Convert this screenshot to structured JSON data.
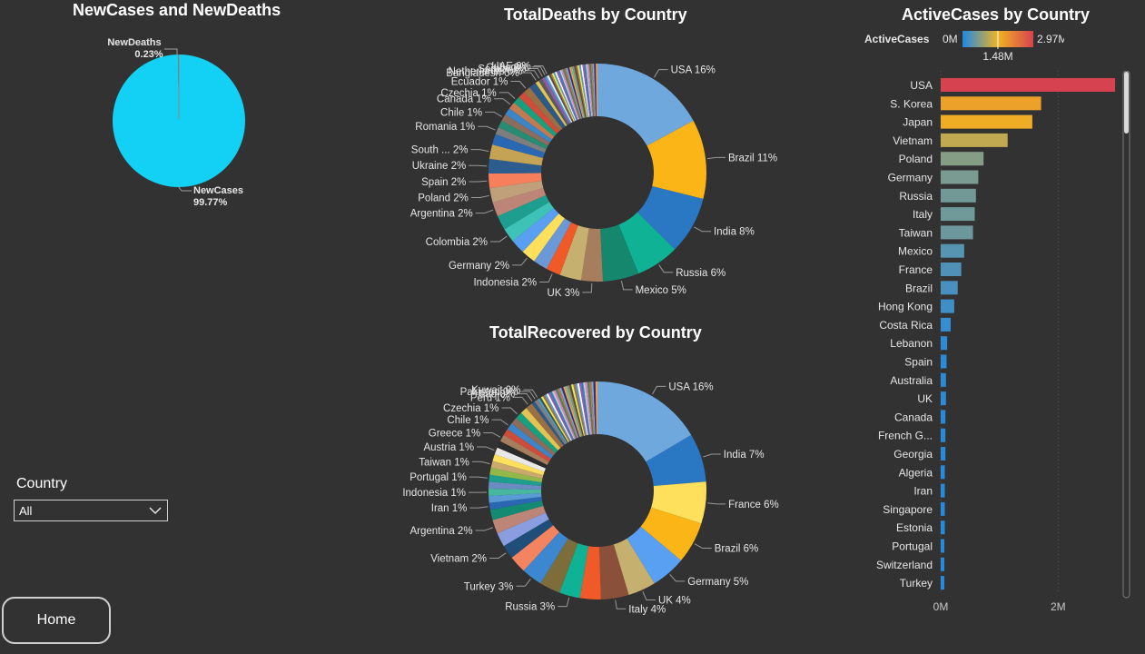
{
  "colors": {
    "background": "#323232",
    "new_cases": "#12d1f5",
    "new_deaths": "#7a7a7a",
    "gradient": [
      "#1e88e5",
      "#f0b323",
      "#d6424f"
    ]
  },
  "slicer": {
    "label": "Country",
    "value": "All"
  },
  "home_button": {
    "label": "Home"
  },
  "chart_data": [
    {
      "type": "pie",
      "title": "NewCases and NewDeaths",
      "slices": [
        {
          "name": "NewCases",
          "value": 99.77,
          "label": "99.77%"
        },
        {
          "name": "NewDeaths",
          "value": 0.23,
          "label": "0.23%"
        }
      ]
    },
    {
      "type": "pie",
      "donut": true,
      "title": "TotalDeaths by Country",
      "other_colors": [
        "#4f4f4f",
        "#a5714b",
        "#e8ef4b",
        "#5b9bd5",
        "#ffffff",
        "#9b59b6",
        "#2e86c1",
        "#c9c9c9",
        "#e57ec7",
        "#3d8c5b",
        "#bd7840",
        "#7ea6d8",
        "#303080",
        "#ff9a3c",
        "#5ec7a8",
        "#aa7f62"
      ],
      "slices": [
        {
          "name": "USA",
          "value": 16,
          "label": "USA 16%",
          "color": "#6fa8dc"
        },
        {
          "name": "Brazil",
          "value": 11,
          "label": "Brazil 11%",
          "color": "#fbb516"
        },
        {
          "name": "India",
          "value": 8,
          "label": "India 8%",
          "color": "#2a77c4"
        },
        {
          "name": "Russia",
          "value": 6,
          "label": "Russia 6%",
          "color": "#10b295"
        },
        {
          "name": "Mexico",
          "value": 5,
          "label": "Mexico 5%",
          "color": "#14876d"
        },
        {
          "name": "UK",
          "value": 3,
          "label": "UK 3%",
          "color": "#a67e5d"
        },
        {
          "name": "",
          "value": 3,
          "label": "",
          "color": "#c6b06f"
        },
        {
          "name": "Indonesia",
          "value": 2,
          "label": "Indonesia 2%",
          "color": "#f05a28"
        },
        {
          "name": "",
          "value": 2,
          "label": "",
          "color": "#6b98d6"
        },
        {
          "name": "Germany",
          "value": 2,
          "label": "Germany 2%",
          "color": "#fee05c"
        },
        {
          "name": "",
          "value": 2,
          "label": "",
          "color": "#5aa0f2"
        },
        {
          "name": "Colombia",
          "value": 2,
          "label": "Colombia 2%",
          "color": "#3ec2b7"
        },
        {
          "name": "",
          "value": 2,
          "label": "",
          "color": "#1e9e8e"
        },
        {
          "name": "Argentina",
          "value": 2,
          "label": "Argentina 2%",
          "color": "#bd8577"
        },
        {
          "name": "Poland",
          "value": 2,
          "label": "Poland 2%",
          "color": "#c0a07a"
        },
        {
          "name": "Spain",
          "value": 2,
          "label": "Spain 2%",
          "color": "#f87f5c"
        },
        {
          "name": "Ukraine",
          "value": 2,
          "label": "Ukraine 2%",
          "color": "#2d5d8f"
        },
        {
          "name": "South ...",
          "value": 2,
          "label": "South ... 2%",
          "color": "#c4a354"
        },
        {
          "name": "",
          "value": 1.5,
          "label": "",
          "color": "#2a68b4"
        },
        {
          "name": "Romania",
          "value": 1,
          "label": "Romania 1%",
          "color": "#7e7e7e"
        },
        {
          "name": "",
          "value": 1,
          "label": "",
          "color": "#268c73"
        },
        {
          "name": "Chile",
          "value": 1,
          "label": "Chile 1%",
          "color": "#8c6c5a"
        },
        {
          "name": "",
          "value": 1,
          "label": "",
          "color": "#3a86c8"
        },
        {
          "name": "Canada",
          "value": 1,
          "label": "Canada 1%",
          "color": "#c27a50"
        },
        {
          "name": "Czechia",
          "value": 1,
          "label": "Czechia 1%",
          "color": "#17a080"
        },
        {
          "name": "",
          "value": 1,
          "label": "",
          "color": "#d04c3a"
        },
        {
          "name": "Ecuador",
          "value": 1,
          "label": "Ecuador 1%",
          "color": "#9a6f44"
        },
        {
          "name": "",
          "value": 1,
          "label": "",
          "color": "#2b5a88"
        },
        {
          "name": "Bangladesh",
          "value": 0.5,
          "label": "Bangladesh 0%",
          "color": "#e1c454"
        },
        {
          "name": "Netherlands",
          "value": 0.5,
          "label": "Netherlands 0%",
          "color": "#5a5a5a"
        },
        {
          "name": "Serbia",
          "value": 0.5,
          "label": "Serbia 0%",
          "color": "#8a5ba6"
        },
        {
          "name": "Cuba",
          "value": 0.3,
          "label": "Cuba 0%",
          "color": "#46a0d0"
        },
        {
          "name": "UAE",
          "value": 0.3,
          "label": "UAE 0%",
          "color": "#e8e8e8"
        },
        {
          "name": "",
          "value": 6.9,
          "label": "",
          "color": "other"
        }
      ]
    },
    {
      "type": "pie",
      "donut": true,
      "title": "TotalRecovered by Country",
      "other_colors": [
        "#4f4f4f",
        "#e8ef4b",
        "#a5714b",
        "#5b9bd5",
        "#ffffff",
        "#9b59b6",
        "#2e86c1",
        "#c9c9c9",
        "#e57ec7",
        "#3d8c5b",
        "#bd7840",
        "#7ea6d8",
        "#303080",
        "#ff9a3c",
        "#5ec7a8",
        "#aa7f62"
      ],
      "slices": [
        {
          "name": "USA",
          "value": 16,
          "label": "USA 16%",
          "color": "#6fa8dc"
        },
        {
          "name": "India",
          "value": 7,
          "label": "India 7%",
          "color": "#2a77c4"
        },
        {
          "name": "France",
          "value": 6,
          "label": "France 6%",
          "color": "#fee05c"
        },
        {
          "name": "Brazil",
          "value": 6,
          "label": "Brazil 6%",
          "color": "#fbb516"
        },
        {
          "name": "Germany",
          "value": 5,
          "label": "Germany 5%",
          "color": "#5aa0f2"
        },
        {
          "name": "UK",
          "value": 4,
          "label": "UK 4%",
          "color": "#c6b06f"
        },
        {
          "name": "Italy",
          "value": 4,
          "label": "Italy 4%",
          "color": "#8a5039"
        },
        {
          "name": "",
          "value": 3,
          "label": "",
          "color": "#f05a28"
        },
        {
          "name": "Russia",
          "value": 3,
          "label": "Russia 3%",
          "color": "#10b295"
        },
        {
          "name": "",
          "value": 3,
          "label": "",
          "color": "#7d6d3a"
        },
        {
          "name": "Turkey",
          "value": 3,
          "label": "Turkey 3%",
          "color": "#3d86d0"
        },
        {
          "name": "",
          "value": 2.5,
          "label": "",
          "color": "#f4845f"
        },
        {
          "name": "Vietnam",
          "value": 2,
          "label": "Vietnam 2%",
          "color": "#1f4e78"
        },
        {
          "name": "",
          "value": 2,
          "label": "",
          "color": "#8a9de0"
        },
        {
          "name": "Argentina",
          "value": 2,
          "label": "Argentina 2%",
          "color": "#bd8577"
        },
        {
          "name": "",
          "value": 1.5,
          "label": "",
          "color": "#148a73"
        },
        {
          "name": "Iran",
          "value": 1,
          "label": "Iran 1%",
          "color": "#2a68b4"
        },
        {
          "name": "",
          "value": 1,
          "label": "",
          "color": "#5a9bd5"
        },
        {
          "name": "Indonesia",
          "value": 1,
          "label": "Indonesia 1%",
          "color": "#47b7a0"
        },
        {
          "name": "",
          "value": 1,
          "label": "",
          "color": "#6b8cc0"
        },
        {
          "name": "Portugal",
          "value": 1,
          "label": "Portugal 1%",
          "color": "#1e9e8e"
        },
        {
          "name": "",
          "value": 1,
          "label": "",
          "color": "#93b84a"
        },
        {
          "name": "Taiwan",
          "value": 1,
          "label": "Taiwan 1%",
          "color": "#c9a96e"
        },
        {
          "name": "",
          "value": 1,
          "label": "",
          "color": "#fee05c"
        },
        {
          "name": "Austria",
          "value": 1,
          "label": "Austria 1%",
          "color": "#e8e8e8"
        },
        {
          "name": "",
          "value": 1,
          "label": "",
          "color": "#2b2b2b"
        },
        {
          "name": "Greece",
          "value": 1,
          "label": "Greece 1%",
          "color": "#a67e5d"
        },
        {
          "name": "",
          "value": 1,
          "label": "",
          "color": "#d04c3a"
        },
        {
          "name": "Chile",
          "value": 1,
          "label": "Chile 1%",
          "color": "#3a86c8"
        },
        {
          "name": "",
          "value": 1,
          "label": "",
          "color": "#8c6c5a"
        },
        {
          "name": "Czechia",
          "value": 1,
          "label": "Czechia 1%",
          "color": "#17a080"
        },
        {
          "name": "",
          "value": 1,
          "label": "",
          "color": "#e1c454"
        },
        {
          "name": "Peru",
          "value": 1,
          "label": "Peru 1%",
          "color": "#9a6f44"
        },
        {
          "name": "Iraq",
          "value": 0.5,
          "label": "Iraq 0%",
          "color": "#2b5a88"
        },
        {
          "name": "Pakistan",
          "value": 0.5,
          "label": "Pakistan 0%",
          "color": "#7e7e7e"
        },
        {
          "name": "Kuwait",
          "value": 0.3,
          "label": "Kuwait 0%",
          "color": "#46a0d0"
        },
        {
          "name": "",
          "value": 8.7,
          "label": "",
          "color": "other"
        }
      ]
    },
    {
      "type": "bar",
      "orientation": "horizontal",
      "title": "ActiveCases by Country",
      "legend_title": "ActiveCases",
      "color_scale": {
        "min_label": "0M",
        "mid_label": "1.48M",
        "max_label": "2.97M",
        "min": 0,
        "mid": 1.48,
        "max": 2.97
      },
      "x_ticks": [
        {
          "value": 0,
          "label": "0M"
        },
        {
          "value": 2,
          "label": "2M"
        }
      ],
      "xlim": [
        0,
        3.0
      ],
      "unit": "M",
      "categories": [
        "USA",
        "S. Korea",
        "Japan",
        "Vietnam",
        "Poland",
        "Germany",
        "Russia",
        "Italy",
        "Taiwan",
        "Mexico",
        "France",
        "Brazil",
        "Hong Kong",
        "Costa Rica",
        "Lebanon",
        "Spain",
        "Australia",
        "UK",
        "Canada",
        "French G...",
        "Georgia",
        "Algeria",
        "Iran",
        "Singapore",
        "Estonia",
        "Portugal",
        "Switzerland",
        "Turkey"
      ],
      "values": [
        2.97,
        1.71,
        1.56,
        1.14,
        0.73,
        0.64,
        0.6,
        0.58,
        0.55,
        0.4,
        0.35,
        0.29,
        0.23,
        0.17,
        0.11,
        0.1,
        0.09,
        0.09,
        0.08,
        0.08,
        0.08,
        0.07,
        0.07,
        0.07,
        0.07,
        0.06,
        0.06,
        0.06
      ]
    }
  ]
}
